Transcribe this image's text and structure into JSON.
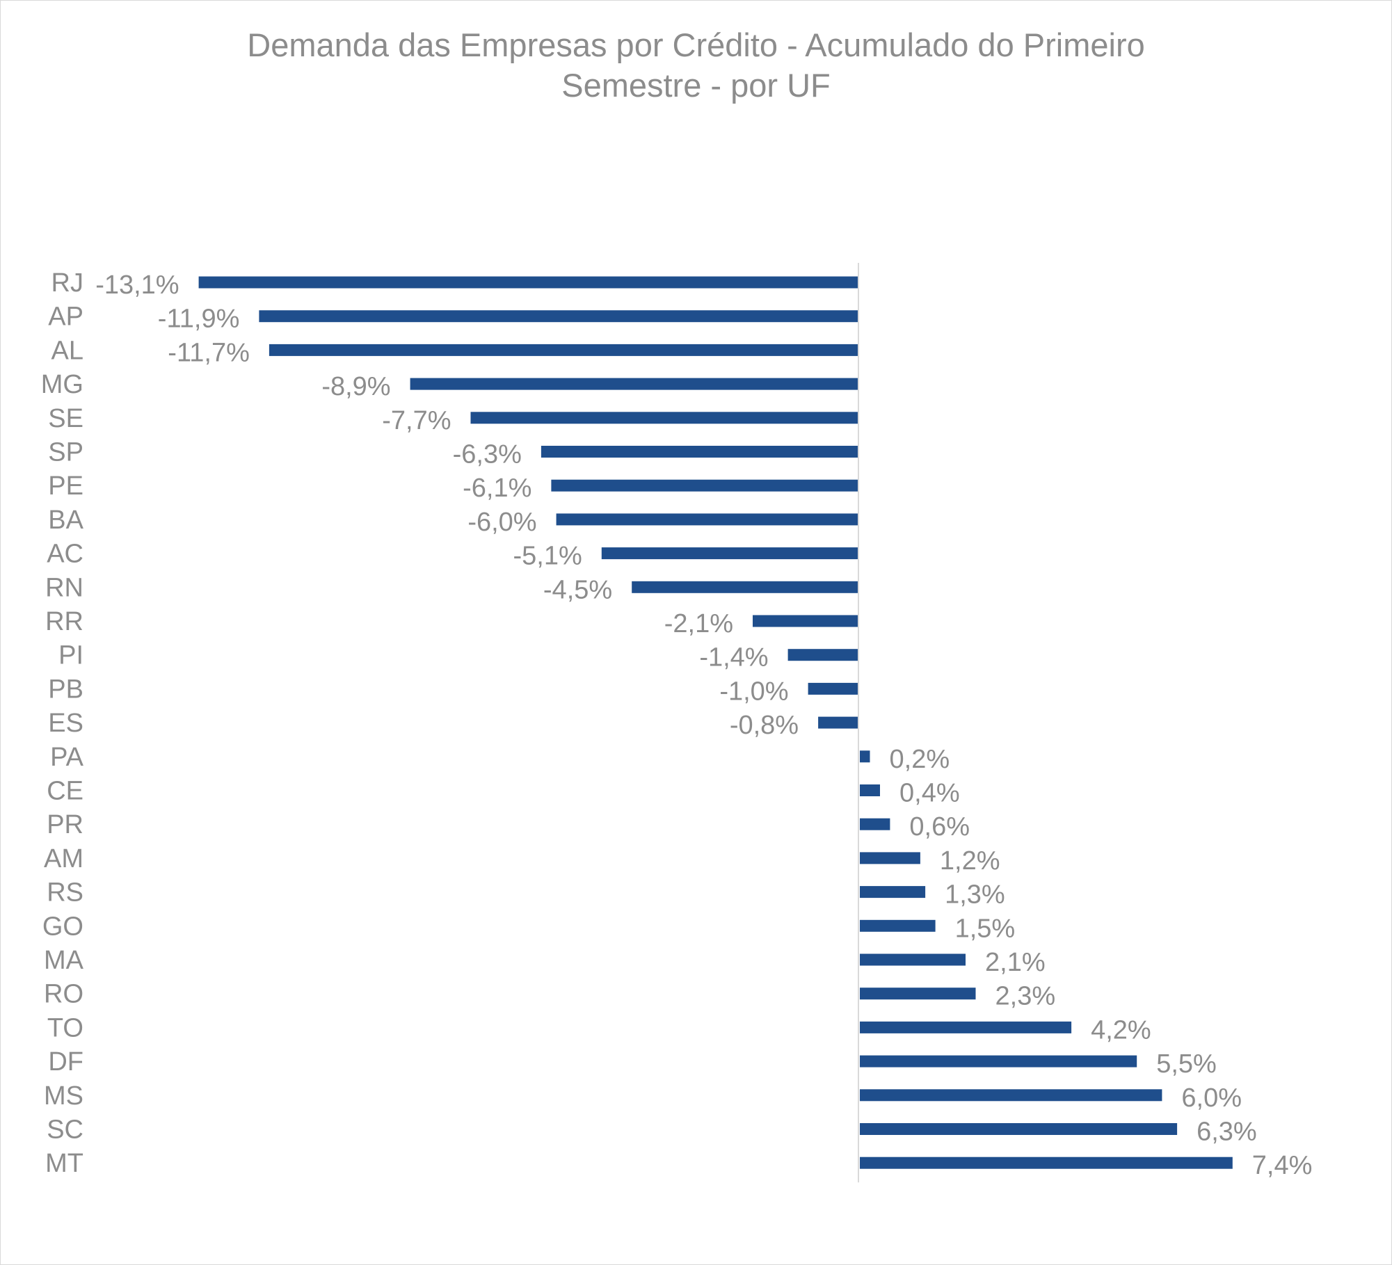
{
  "chart_data": {
    "type": "bar",
    "orientation": "horizontal",
    "title": "Demanda das Empresas por Crédito - Acumulado do Primeiro Semestre - por UF",
    "title_lines": [
      "Demanda das Empresas por Crédito - Acumulado do Primeiro",
      "Semestre - por UF"
    ],
    "categories": [
      "RJ",
      "AP",
      "AL",
      "MG",
      "SE",
      "SP",
      "PE",
      "BA",
      "AC",
      "RN",
      "RR",
      "PI",
      "PB",
      "ES",
      "PA",
      "CE",
      "PR",
      "AM",
      "RS",
      "GO",
      "MA",
      "RO",
      "TO",
      "DF",
      "MS",
      "SC",
      "MT"
    ],
    "values": [
      -13.1,
      -11.9,
      -11.7,
      -8.9,
      -7.7,
      -6.3,
      -6.1,
      -6.0,
      -5.1,
      -4.5,
      -2.1,
      -1.4,
      -1.0,
      -0.8,
      0.2,
      0.4,
      0.6,
      1.2,
      1.3,
      1.5,
      2.1,
      2.3,
      4.2,
      5.5,
      6.0,
      6.3,
      7.4
    ],
    "data_labels": [
      "-13,1%",
      "-11,9%",
      "-11,7%",
      "-8,9%",
      "-7,7%",
      "-6,3%",
      "-6,1%",
      "-6,0%",
      "-5,1%",
      "-4,5%",
      "-2,1%",
      "-1,4%",
      "-1,0%",
      "-0,8%",
      "0,2%",
      "0,4%",
      "0,6%",
      "1,2%",
      "1,3%",
      "1,5%",
      "2,1%",
      "2,3%",
      "4,2%",
      "5,5%",
      "6,0%",
      "6,3%",
      "7,4%"
    ],
    "unit": "%",
    "series": [
      {
        "values": [
          -13.1,
          -11.9,
          -11.7,
          -8.9,
          -7.7,
          -6.3,
          -6.1,
          -6.0,
          -5.1,
          -4.5,
          -2.1,
          -1.4,
          -1.0,
          -0.8,
          0.2,
          0.4,
          0.6,
          1.2,
          1.3,
          1.5,
          2.1,
          2.3,
          4.2,
          5.5,
          6.0,
          6.3,
          7.4
        ]
      }
    ],
    "xlim": [
      -13.1,
      7.4
    ],
    "grid": false,
    "legend": "none",
    "bar_color": "#1f4e8c",
    "axis_color": "#d9d9d9",
    "text_color": "#8c8c8c"
  }
}
